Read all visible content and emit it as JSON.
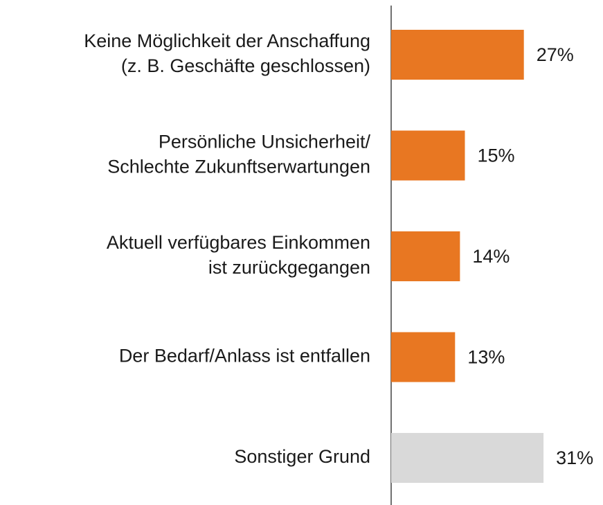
{
  "chart_data": {
    "type": "hbar",
    "categories": [
      [
        "Keine Möglichkeit der Anschaffung",
        "(z. B. Geschäfte geschlossen)"
      ],
      [
        "Persönliche Unsicherheit/",
        "Schlechte Zukunftserwartungen"
      ],
      [
        "Aktuell verfügbares Einkommen",
        "ist zurückgegangen"
      ],
      [
        "Der Bedarf/Anlass ist entfallen"
      ],
      [
        "Sonstiger Grund"
      ]
    ],
    "values": [
      27,
      15,
      14,
      13,
      31
    ],
    "value_labels": [
      "27%",
      "15%",
      "14%",
      "13%",
      "31%"
    ],
    "colors": [
      "#e87722",
      "#e87722",
      "#e87722",
      "#e87722",
      "#d9d9d9"
    ]
  }
}
